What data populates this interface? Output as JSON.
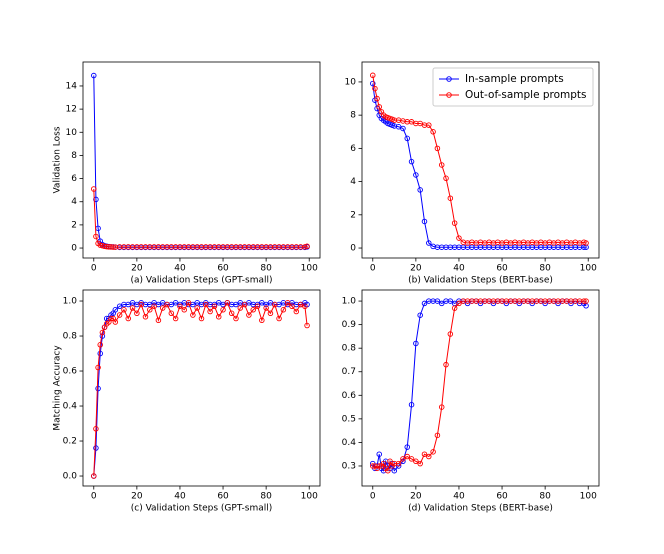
{
  "chart_data": [
    {
      "type": "line",
      "xlabel": "(a) Validation Steps (GPT-small)",
      "ylabel": "Validation Loss",
      "x": [
        0,
        1,
        2,
        3,
        4,
        5,
        6,
        7,
        8,
        9,
        10,
        12,
        14,
        16,
        18,
        20,
        22,
        24,
        26,
        28,
        30,
        32,
        34,
        36,
        38,
        40,
        42,
        44,
        46,
        48,
        50,
        52,
        54,
        56,
        58,
        60,
        62,
        64,
        66,
        68,
        70,
        72,
        74,
        76,
        78,
        80,
        82,
        84,
        86,
        88,
        90,
        92,
        94,
        96,
        98,
        99
      ],
      "series": [
        {
          "color": "#0000ff",
          "values": [
            14.9,
            4.2,
            1.7,
            0.6,
            0.3,
            0.2,
            0.15,
            0.12,
            0.1,
            0.1,
            0.08,
            0.06,
            0.06,
            0.06,
            0.06,
            0.06,
            0.06,
            0.06,
            0.06,
            0.06,
            0.06,
            0.06,
            0.06,
            0.06,
            0.06,
            0.06,
            0.06,
            0.06,
            0.06,
            0.06,
            0.06,
            0.06,
            0.06,
            0.06,
            0.06,
            0.06,
            0.06,
            0.06,
            0.06,
            0.06,
            0.06,
            0.06,
            0.06,
            0.06,
            0.06,
            0.06,
            0.06,
            0.06,
            0.06,
            0.06,
            0.06,
            0.06,
            0.06,
            0.06,
            0.06,
            0.1
          ]
        },
        {
          "color": "#ff0000",
          "values": [
            5.1,
            1.0,
            0.4,
            0.25,
            0.2,
            0.15,
            0.12,
            0.1,
            0.1,
            0.08,
            0.08,
            0.1,
            0.1,
            0.1,
            0.1,
            0.1,
            0.1,
            0.1,
            0.1,
            0.1,
            0.1,
            0.1,
            0.1,
            0.1,
            0.1,
            0.1,
            0.1,
            0.1,
            0.1,
            0.1,
            0.1,
            0.1,
            0.1,
            0.1,
            0.1,
            0.1,
            0.1,
            0.1,
            0.1,
            0.1,
            0.1,
            0.1,
            0.1,
            0.1,
            0.1,
            0.1,
            0.1,
            0.1,
            0.1,
            0.1,
            0.1,
            0.1,
            0.1,
            0.1,
            0.1,
            0.15
          ]
        }
      ],
      "xlim": [
        -5,
        105
      ],
      "xticks": [
        0,
        20,
        40,
        60,
        80,
        100
      ],
      "ylim": [
        -0.86,
        16.07
      ],
      "yticks": [
        0,
        2,
        4,
        6,
        8,
        10,
        12,
        14
      ],
      "legend": false
    },
    {
      "type": "line",
      "xlabel": "(b) Validation Steps (BERT-base)",
      "x": [
        0,
        1,
        2,
        3,
        4,
        5,
        6,
        7,
        8,
        9,
        10,
        12,
        14,
        16,
        18,
        20,
        22,
        24,
        26,
        28,
        30,
        32,
        34,
        36,
        38,
        40,
        42,
        44,
        46,
        48,
        50,
        52,
        54,
        56,
        58,
        60,
        62,
        64,
        66,
        68,
        70,
        72,
        74,
        76,
        78,
        80,
        82,
        84,
        86,
        88,
        90,
        92,
        94,
        96,
        98,
        99
      ],
      "series": [
        {
          "name": "In-sample prompts",
          "color": "#0000ff",
          "values": [
            9.9,
            8.9,
            8.4,
            8.0,
            7.8,
            7.7,
            7.6,
            7.5,
            7.45,
            7.4,
            7.35,
            7.3,
            7.2,
            6.6,
            5.2,
            4.4,
            3.5,
            1.6,
            0.3,
            0.1,
            0.05,
            0.05,
            0.05,
            0.05,
            0.05,
            0.05,
            0.05,
            0.05,
            0.05,
            0.05,
            0.05,
            0.05,
            0.05,
            0.05,
            0.05,
            0.05,
            0.05,
            0.05,
            0.05,
            0.05,
            0.05,
            0.05,
            0.05,
            0.05,
            0.05,
            0.05,
            0.05,
            0.05,
            0.05,
            0.05,
            0.05,
            0.05,
            0.05,
            0.05,
            0.05,
            0.05
          ]
        },
        {
          "name": "Out-of-sample prompts",
          "color": "#ff0000",
          "values": [
            10.4,
            9.6,
            9.0,
            8.5,
            8.2,
            8.0,
            7.9,
            7.85,
            7.8,
            7.75,
            7.7,
            7.7,
            7.65,
            7.6,
            7.6,
            7.5,
            7.5,
            7.4,
            7.4,
            7.0,
            6.0,
            5.0,
            4.2,
            3.0,
            1.5,
            0.6,
            0.35,
            0.3,
            0.35,
            0.3,
            0.35,
            0.3,
            0.35,
            0.3,
            0.35,
            0.3,
            0.35,
            0.3,
            0.35,
            0.3,
            0.35,
            0.3,
            0.35,
            0.3,
            0.35,
            0.3,
            0.35,
            0.3,
            0.35,
            0.3,
            0.35,
            0.3,
            0.35,
            0.3,
            0.35,
            0.3
          ]
        }
      ],
      "xlim": [
        -5,
        105
      ],
      "xticks": [
        0,
        20,
        40,
        60,
        80,
        100
      ],
      "ylim": [
        -0.6,
        11.2
      ],
      "yticks": [
        0,
        2,
        4,
        6,
        8,
        10
      ],
      "legend": "upper right"
    },
    {
      "type": "line",
      "xlabel": "(c) Validation Steps (GPT-small)",
      "ylabel": "Matching Accuracy",
      "x": [
        0,
        1,
        2,
        3,
        4,
        5,
        6,
        7,
        8,
        9,
        10,
        12,
        14,
        16,
        18,
        20,
        22,
        24,
        26,
        28,
        30,
        32,
        34,
        36,
        38,
        40,
        42,
        44,
        46,
        48,
        50,
        52,
        54,
        56,
        58,
        60,
        62,
        64,
        66,
        68,
        70,
        72,
        74,
        76,
        78,
        80,
        82,
        84,
        86,
        88,
        90,
        92,
        94,
        96,
        98,
        99
      ],
      "series": [
        {
          "color": "#0000ff",
          "values": [
            0.0,
            0.16,
            0.5,
            0.7,
            0.8,
            0.85,
            0.9,
            0.9,
            0.92,
            0.93,
            0.95,
            0.97,
            0.98,
            0.98,
            0.99,
            0.98,
            0.99,
            0.98,
            0.98,
            0.99,
            0.98,
            0.99,
            0.98,
            0.98,
            0.99,
            0.98,
            0.99,
            0.98,
            0.98,
            0.99,
            0.98,
            0.99,
            0.98,
            0.98,
            0.99,
            0.98,
            0.99,
            0.98,
            0.98,
            0.99,
            0.98,
            0.99,
            0.98,
            0.98,
            0.99,
            0.98,
            0.99,
            0.98,
            0.98,
            0.99,
            0.98,
            0.99,
            0.98,
            0.98,
            0.99,
            0.98
          ]
        },
        {
          "color": "#ff0000",
          "values": [
            0.0,
            0.27,
            0.62,
            0.75,
            0.82,
            0.85,
            0.87,
            0.88,
            0.9,
            0.9,
            0.88,
            0.92,
            0.95,
            0.9,
            0.96,
            0.93,
            0.98,
            0.91,
            0.95,
            0.97,
            0.89,
            0.96,
            0.98,
            0.93,
            0.9,
            0.97,
            0.95,
            0.99,
            0.92,
            0.96,
            0.9,
            0.98,
            0.94,
            0.97,
            0.91,
            0.95,
            0.99,
            0.93,
            0.9,
            0.96,
            0.98,
            0.92,
            0.95,
            0.97,
            0.89,
            0.96,
            0.93,
            0.98,
            0.9,
            0.95,
            0.99,
            0.97,
            0.94,
            0.98,
            0.97,
            0.86
          ]
        }
      ],
      "xlim": [
        -5,
        105
      ],
      "xticks": [
        0,
        20,
        40,
        60,
        80,
        100
      ],
      "ylim": [
        -0.057,
        1.063
      ],
      "yticks": [
        {
          "value": 0,
          "label": "0.0"
        },
        0.2,
        0.4,
        0.6,
        0.8,
        {
          "value": 1,
          "label": "1.0"
        }
      ],
      "legend": false
    },
    {
      "type": "line",
      "xlabel": "(d) Validation Steps (BERT-base)",
      "x": [
        0,
        1,
        2,
        3,
        4,
        5,
        6,
        7,
        8,
        9,
        10,
        12,
        14,
        16,
        18,
        20,
        22,
        24,
        26,
        28,
        30,
        32,
        34,
        36,
        38,
        40,
        42,
        44,
        46,
        48,
        50,
        52,
        54,
        56,
        58,
        60,
        62,
        64,
        66,
        68,
        70,
        72,
        74,
        76,
        78,
        80,
        82,
        84,
        86,
        88,
        90,
        92,
        94,
        96,
        98,
        99
      ],
      "series": [
        {
          "color": "#0000ff",
          "values": [
            0.31,
            0.29,
            0.3,
            0.35,
            0.29,
            0.28,
            0.32,
            0.3,
            0.29,
            0.31,
            0.28,
            0.3,
            0.32,
            0.38,
            0.56,
            0.82,
            0.94,
            0.99,
            1.0,
            1.0,
            1.0,
            0.99,
            1.0,
            1.0,
            0.99,
            1.0,
            1.0,
            0.99,
            1.0,
            1.0,
            0.99,
            1.0,
            1.0,
            0.99,
            1.0,
            1.0,
            0.99,
            1.0,
            1.0,
            0.99,
            1.0,
            1.0,
            0.99,
            1.0,
            1.0,
            0.99,
            1.0,
            1.0,
            0.99,
            1.0,
            1.0,
            0.99,
            1.0,
            0.99,
            0.99,
            0.98
          ]
        },
        {
          "color": "#ff0000",
          "values": [
            0.3,
            0.3,
            0.29,
            0.3,
            0.3,
            0.31,
            0.29,
            0.28,
            0.32,
            0.3,
            0.31,
            0.31,
            0.33,
            0.34,
            0.33,
            0.32,
            0.31,
            0.35,
            0.34,
            0.36,
            0.43,
            0.55,
            0.73,
            0.86,
            0.97,
            0.99,
            1.0,
            1.0,
            1.0,
            1.0,
            1.0,
            1.0,
            1.0,
            1.0,
            1.0,
            1.0,
            1.0,
            1.0,
            1.0,
            1.0,
            1.0,
            1.0,
            1.0,
            1.0,
            1.0,
            1.0,
            1.0,
            1.0,
            1.0,
            1.0,
            1.0,
            1.0,
            1.0,
            1.0,
            1.0,
            1.0
          ]
        }
      ],
      "xlim": [
        -5,
        105
      ],
      "xticks": [
        0,
        20,
        40,
        60,
        80,
        100
      ],
      "ylim": [
        0.215,
        1.047
      ],
      "yticks": [
        0.3,
        0.4,
        0.5,
        0.6,
        0.7,
        0.8,
        0.9,
        {
          "value": 1,
          "label": "1.0"
        }
      ],
      "legend": false
    }
  ]
}
